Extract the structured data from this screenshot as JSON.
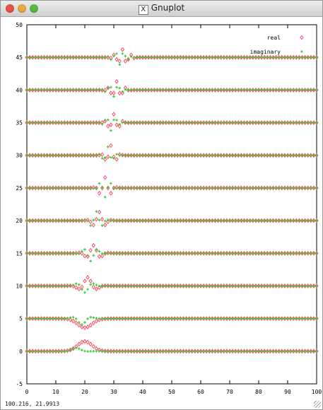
{
  "window": {
    "title": "Gnuplot",
    "x_icon_glyph": "X"
  },
  "status_text": "100.216,  21.9913",
  "colors": {
    "real": "#ff4d6a",
    "imaginary": "#33cc33",
    "axis": "#000000"
  },
  "chart_data": {
    "type": "scatter",
    "title": "",
    "xlabel": "",
    "ylabel": "",
    "xlim": [
      0,
      100
    ],
    "ylim": [
      -5,
      50
    ],
    "xticks": [
      0,
      10,
      20,
      30,
      40,
      50,
      60,
      70,
      80,
      90,
      100
    ],
    "yticks": [
      -5,
      0,
      5,
      10,
      15,
      20,
      25,
      30,
      35,
      40,
      45,
      50
    ],
    "legend_position": "top-right",
    "series": [
      {
        "name": "real",
        "marker": "diamond",
        "traces": [
          {
            "offset": 0,
            "center": 20,
            "width": 3.5,
            "amp": 1.5,
            "cycles": 0.0
          },
          {
            "offset": 5,
            "center": 20,
            "width": 3.5,
            "amp": -1.4,
            "cycles": 0.0
          },
          {
            "offset": 10,
            "center": 21,
            "width": 3.2,
            "amp": 1.3,
            "cycles": 0.14
          },
          {
            "offset": 15,
            "center": 23,
            "width": 3.0,
            "amp": 1.2,
            "cycles": 0.18
          },
          {
            "offset": 20,
            "center": 25,
            "width": 2.6,
            "amp": 1.3,
            "cycles": 0.22
          },
          {
            "offset": 25,
            "center": 27,
            "width": 2.4,
            "amp": 1.6,
            "cycles": 0.25
          },
          {
            "offset": 30,
            "center": 29,
            "width": 2.2,
            "amp": 1.5,
            "cycles": 0.28
          },
          {
            "offset": 35,
            "center": 30,
            "width": 2.4,
            "amp": 1.3,
            "cycles": 0.3
          },
          {
            "offset": 40,
            "center": 31,
            "width": 2.6,
            "amp": 1.3,
            "cycles": 0.32
          },
          {
            "offset": 45,
            "center": 33,
            "width": 2.8,
            "amp": 1.2,
            "cycles": 0.34
          }
        ]
      },
      {
        "name": "imaginary",
        "marker": "plus",
        "traces": [
          {
            "offset": 0,
            "center": 17,
            "width": 3.0,
            "amp": 0.5,
            "cycles": 0.08
          },
          {
            "offset": 5,
            "center": 19,
            "width": 3.0,
            "amp": -0.9,
            "cycles": 0.12
          },
          {
            "offset": 10,
            "center": 20,
            "width": 3.0,
            "amp": -1.0,
            "cycles": 0.15
          },
          {
            "offset": 15,
            "center": 22,
            "width": 2.8,
            "amp": -1.2,
            "cycles": 0.2
          },
          {
            "offset": 20,
            "center": 24,
            "width": 2.6,
            "amp": 1.4,
            "cycles": 0.24
          },
          {
            "offset": 25,
            "center": 27,
            "width": 2.4,
            "amp": -1.4,
            "cycles": 0.26
          },
          {
            "offset": 30,
            "center": 28,
            "width": 2.2,
            "amp": 1.3,
            "cycles": 0.3
          },
          {
            "offset": 35,
            "center": 29,
            "width": 2.4,
            "amp": -1.2,
            "cycles": 0.32
          },
          {
            "offset": 40,
            "center": 30,
            "width": 2.6,
            "amp": -1.0,
            "cycles": 0.33
          },
          {
            "offset": 45,
            "center": 32,
            "width": 2.8,
            "amp": -1.1,
            "cycles": 0.35
          }
        ]
      }
    ],
    "sample_step": 1
  }
}
